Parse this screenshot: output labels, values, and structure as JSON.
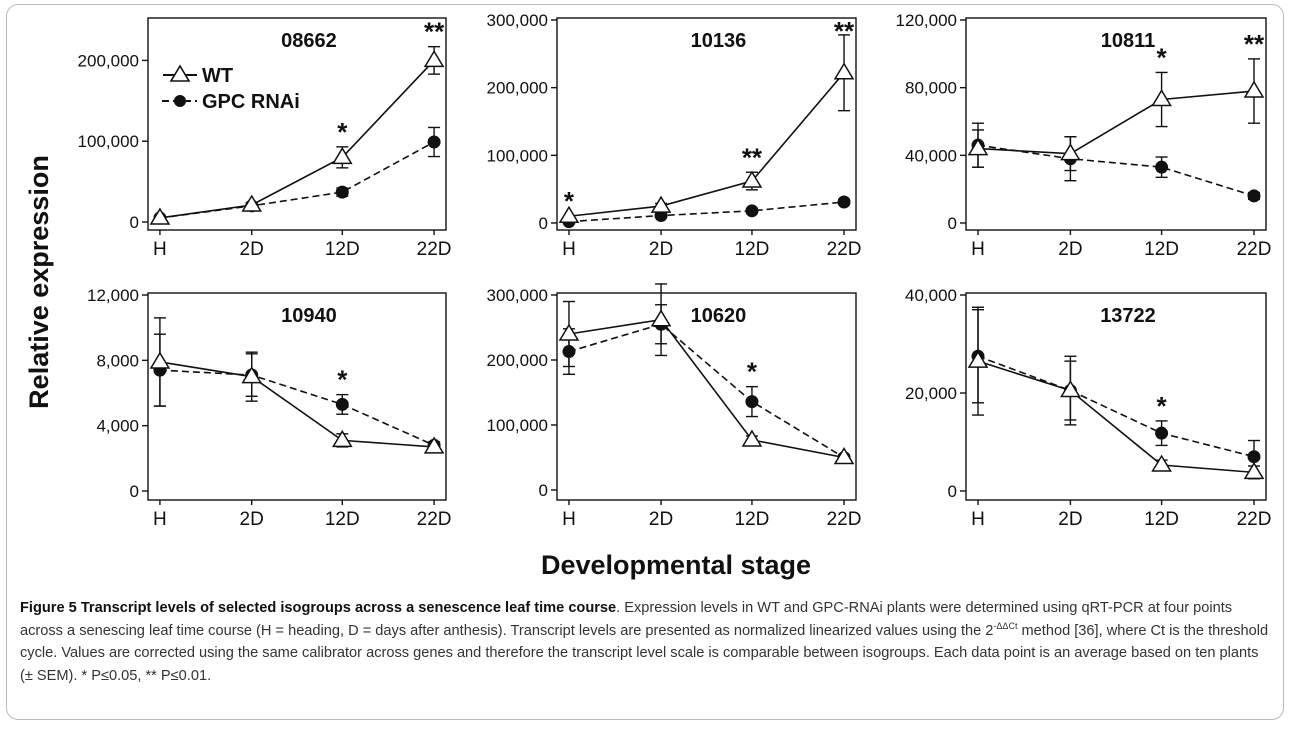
{
  "figure": {
    "ylabel": "Relative expression",
    "xlabel": "Developmental stage",
    "legend": {
      "wt": "WT",
      "rnai": "GPC RNAi"
    }
  },
  "chart_data": [
    {
      "type": "line",
      "title": "08662",
      "categories": [
        "H",
        "2D",
        "12D",
        "22D"
      ],
      "ylim": [
        0,
        250000
      ],
      "yticks": [
        0,
        100000,
        200000
      ],
      "ytick_labels": [
        "0",
        "100,000",
        "200,000"
      ],
      "series": [
        {
          "name": "WT",
          "values": [
            5000,
            21000,
            80000,
            200000
          ],
          "errors": [
            0,
            3000,
            13000,
            17000
          ]
        },
        {
          "name": "GPC RNAi",
          "values": [
            5000,
            20000,
            37000,
            99000
          ],
          "errors": [
            0,
            3000,
            5000,
            18000
          ]
        }
      ],
      "significance": [
        "",
        "",
        "*",
        "**"
      ],
      "legend": "top-left"
    },
    {
      "type": "line",
      "title": "10136",
      "categories": [
        "H",
        "2D",
        "12D",
        "22D"
      ],
      "ylim": [
        0,
        300000
      ],
      "yticks": [
        0,
        100000,
        200000,
        300000
      ],
      "ytick_labels": [
        "0",
        "100,000",
        "200,000",
        "300,000"
      ],
      "series": [
        {
          "name": "WT",
          "values": [
            10000,
            25000,
            62000,
            222000
          ],
          "errors": [
            0,
            4000,
            13000,
            56000
          ]
        },
        {
          "name": "GPC RNAi",
          "values": [
            2000,
            11000,
            18000,
            31000
          ],
          "errors": [
            0,
            2000,
            3000,
            4000
          ]
        }
      ],
      "significance": [
        "*",
        "",
        "**",
        "**"
      ]
    },
    {
      "type": "line",
      "title": "10811",
      "categories": [
        "H",
        "2D",
        "12D",
        "22D"
      ],
      "ylim": [
        0,
        120000
      ],
      "yticks": [
        0,
        40000,
        80000,
        120000
      ],
      "ytick_labels": [
        "0",
        "40,000",
        "80,000",
        "120,000"
      ],
      "series": [
        {
          "name": "WT",
          "values": [
            44000,
            41000,
            73000,
            78000
          ],
          "errors": [
            11000,
            10000,
            16000,
            19000
          ]
        },
        {
          "name": "GPC RNAi",
          "values": [
            46000,
            38000,
            33000,
            16000
          ],
          "errors": [
            13000,
            13000,
            6000,
            2000
          ]
        }
      ],
      "significance": [
        "",
        "",
        "*",
        "**"
      ]
    },
    {
      "type": "line",
      "title": "10940",
      "categories": [
        "H",
        "2D",
        "12D",
        "22D"
      ],
      "ylim": [
        0,
        12000
      ],
      "yticks": [
        0,
        4000,
        8000,
        12000
      ],
      "ytick_labels": [
        "0",
        "4,000",
        "8,000",
        "12,000"
      ],
      "series": [
        {
          "name": "WT",
          "values": [
            7900,
            7000,
            3100,
            2700
          ],
          "errors": [
            2700,
            1500,
            400,
            300
          ]
        },
        {
          "name": "GPC RNAi",
          "values": [
            7400,
            7100,
            5300,
            2800
          ],
          "errors": [
            2200,
            1300,
            600,
            200
          ]
        }
      ],
      "significance": [
        "",
        "",
        "*",
        ""
      ]
    },
    {
      "type": "line",
      "title": "10620",
      "categories": [
        "H",
        "2D",
        "12D",
        "22D"
      ],
      "ylim": [
        0,
        300000
      ],
      "yticks": [
        0,
        100000,
        200000,
        300000
      ],
      "ytick_labels": [
        "0",
        "100,000",
        "200,000",
        "300,000"
      ],
      "series": [
        {
          "name": "WT",
          "values": [
            240000,
            262000,
            77000,
            50000
          ],
          "errors": [
            50000,
            55000,
            6000,
            4000
          ]
        },
        {
          "name": "GPC RNAi",
          "values": [
            213000,
            255000,
            136000,
            50000
          ],
          "errors": [
            35000,
            30000,
            23000,
            3000
          ]
        }
      ],
      "significance": [
        "",
        "",
        "*",
        ""
      ]
    },
    {
      "type": "line",
      "title": "13722",
      "categories": [
        "H",
        "2D",
        "12D",
        "22D"
      ],
      "ylim": [
        0,
        40000
      ],
      "yticks": [
        0,
        20000,
        40000
      ],
      "ytick_labels": [
        "0",
        "20,000",
        "40,000"
      ],
      "series": [
        {
          "name": "WT",
          "values": [
            26500,
            20500,
            5300,
            3800
          ],
          "errors": [
            11000,
            7000,
            1000,
            1300
          ]
        },
        {
          "name": "GPC RNAi",
          "values": [
            27500,
            20500,
            11800,
            7000
          ],
          "errors": [
            9500,
            6000,
            2500,
            3300
          ]
        }
      ],
      "significance": [
        "",
        "",
        "*",
        ""
      ]
    }
  ],
  "caption": {
    "title": "Figure 5 Transcript levels of selected isogroups across a senescence leaf time course",
    "text1": ". Expression levels in WT and GPC-RNAi plants were determined using qRT-PCR at four points across a senescing leaf time course (H = heading, D = days after anthesis). Transcript levels are presented as normalized linearized values using the 2",
    "superscript": "-ΔΔCt",
    "text2": " method [36], where Ct is the threshold cycle. Values are corrected using the same calibrator across genes and therefore the transcript level scale is comparable between isogroups. Each data point is an average based on ten plants (± SEM). * P≤0.05, ** P≤0.01."
  }
}
